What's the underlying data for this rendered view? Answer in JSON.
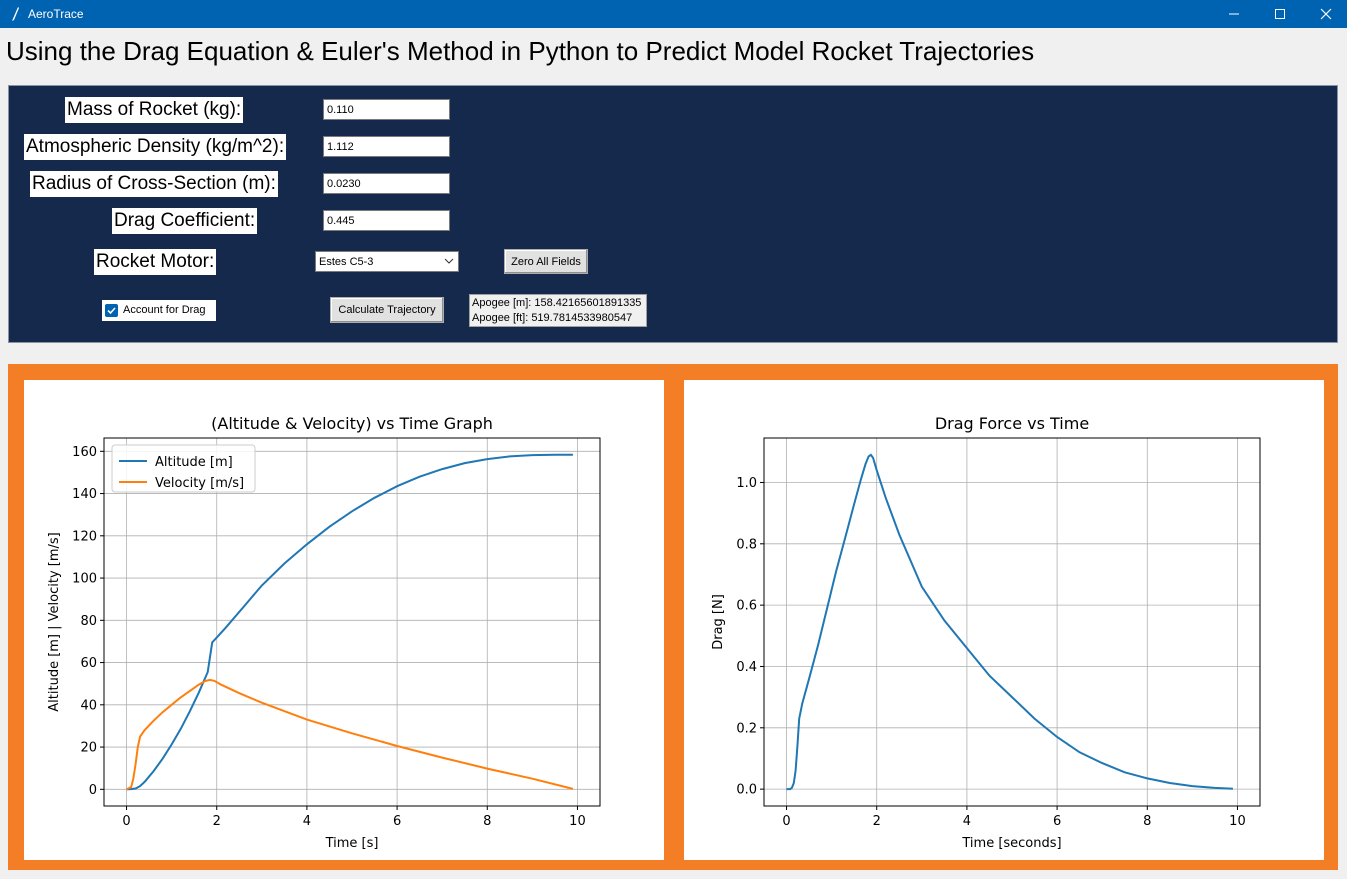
{
  "window": {
    "title": "AeroTrace"
  },
  "heading": "Using the Drag Equation & Euler's Method in Python to Predict Model Rocket Trajectories",
  "form": {
    "mass_label": "Mass of Rocket (kg):",
    "mass_value": "0.110",
    "density_label": "Atmospheric Density (kg/m^2):",
    "density_value": "1.112",
    "radius_label": "Radius of Cross-Section (m):",
    "radius_value": "0.0230",
    "cd_label": "Drag Coefficient:",
    "cd_value": "0.445",
    "motor_label": "Rocket Motor:",
    "motor_value": "Estes C5-3",
    "zero_button": "Zero All Fields",
    "drag_checkbox_label": "Account for Drag",
    "drag_checked": true,
    "calc_button": "Calculate Trajectory",
    "apogee_m": "Apogee [m]: 158.42165601891335",
    "apogee_ft": "Apogee [ft]: 519.7814533980547"
  },
  "colors": {
    "titlebar": "#0063b1",
    "form_bg": "#15294d",
    "panel_orange": "#f47e25",
    "series_blue": "#1f77b4",
    "series_orange": "#ff7f0e"
  },
  "chart_data": [
    {
      "type": "line",
      "title": "(Altitude & Velocity) vs Time Graph",
      "xlabel": "Time [s]",
      "ylabel": "Altitude [m] | Velocity [m/s]",
      "xlim": [
        -0.5,
        10.5
      ],
      "ylim": [
        -7.9,
        166.3
      ],
      "xticks": [
        0,
        2,
        4,
        6,
        8,
        10
      ],
      "yticks": [
        0,
        20,
        40,
        60,
        80,
        100,
        120,
        140,
        160
      ],
      "grid": true,
      "legend": "top-left",
      "series": [
        {
          "name": "Altitude [m]",
          "x": [
            0,
            0.1,
            0.2,
            0.3,
            0.4,
            0.6,
            0.8,
            1.0,
            1.2,
            1.4,
            1.6,
            1.8,
            1.9,
            2.2,
            2.6,
            3.0,
            3.5,
            4.0,
            4.5,
            5.0,
            5.5,
            6.0,
            6.5,
            7.0,
            7.5,
            8.0,
            8.5,
            9.0,
            9.5,
            9.9
          ],
          "y": [
            0,
            0.1,
            0.4,
            1.5,
            3.5,
            8.6,
            14.5,
            21.2,
            28.6,
            36.8,
            45.7,
            55.5,
            69.5,
            76.5,
            86.5,
            96.5,
            106.9,
            116.0,
            124.3,
            131.6,
            138.0,
            143.5,
            148.0,
            151.6,
            154.4,
            156.3,
            157.6,
            158.2,
            158.4,
            158.4
          ]
        },
        {
          "name": "Velocity [m/s]",
          "x": [
            0,
            0.1,
            0.15,
            0.2,
            0.25,
            0.3,
            0.4,
            0.6,
            0.8,
            1.0,
            1.2,
            1.4,
            1.6,
            1.75,
            1.85,
            1.95,
            2.1,
            2.5,
            3.0,
            4.0,
            5.0,
            6.0,
            7.0,
            8.0,
            9.0,
            9.9
          ],
          "y": [
            0,
            1,
            5,
            12,
            20,
            25,
            28,
            32.5,
            36.5,
            40,
            43.5,
            46.5,
            49.5,
            51.3,
            51.8,
            51.3,
            49.5,
            45.5,
            41,
            33,
            26.5,
            20.5,
            15,
            9.8,
            5,
            0.2
          ]
        }
      ]
    },
    {
      "type": "line",
      "title": "Drag Force vs Time",
      "xlabel": "Time [seconds]",
      "ylabel": "Drag [N]",
      "xlim": [
        -0.5,
        10.5
      ],
      "ylim": [
        -0.055,
        1.145
      ],
      "xticks": [
        0,
        2,
        4,
        6,
        8,
        10
      ],
      "yticks": [
        0.0,
        0.2,
        0.4,
        0.6,
        0.8,
        1.0
      ],
      "grid": true,
      "series": [
        {
          "x": [
            0,
            0.08,
            0.12,
            0.16,
            0.2,
            0.24,
            0.28,
            0.35,
            0.5,
            0.7,
            0.9,
            1.1,
            1.3,
            1.5,
            1.65,
            1.75,
            1.82,
            1.87,
            1.92,
            2.0,
            2.2,
            2.5,
            3.0,
            3.5,
            4.0,
            4.5,
            5.0,
            5.5,
            6.0,
            6.5,
            7.0,
            7.5,
            8.0,
            8.5,
            9.0,
            9.5,
            9.9
          ],
          "y": [
            0,
            0,
            0.005,
            0.02,
            0.06,
            0.14,
            0.23,
            0.28,
            0.36,
            0.47,
            0.59,
            0.71,
            0.82,
            0.93,
            1.01,
            1.06,
            1.085,
            1.09,
            1.08,
            1.04,
            0.95,
            0.83,
            0.66,
            0.55,
            0.46,
            0.37,
            0.3,
            0.23,
            0.17,
            0.12,
            0.085,
            0.055,
            0.035,
            0.02,
            0.01,
            0.004,
            0.001
          ]
        }
      ]
    }
  ]
}
